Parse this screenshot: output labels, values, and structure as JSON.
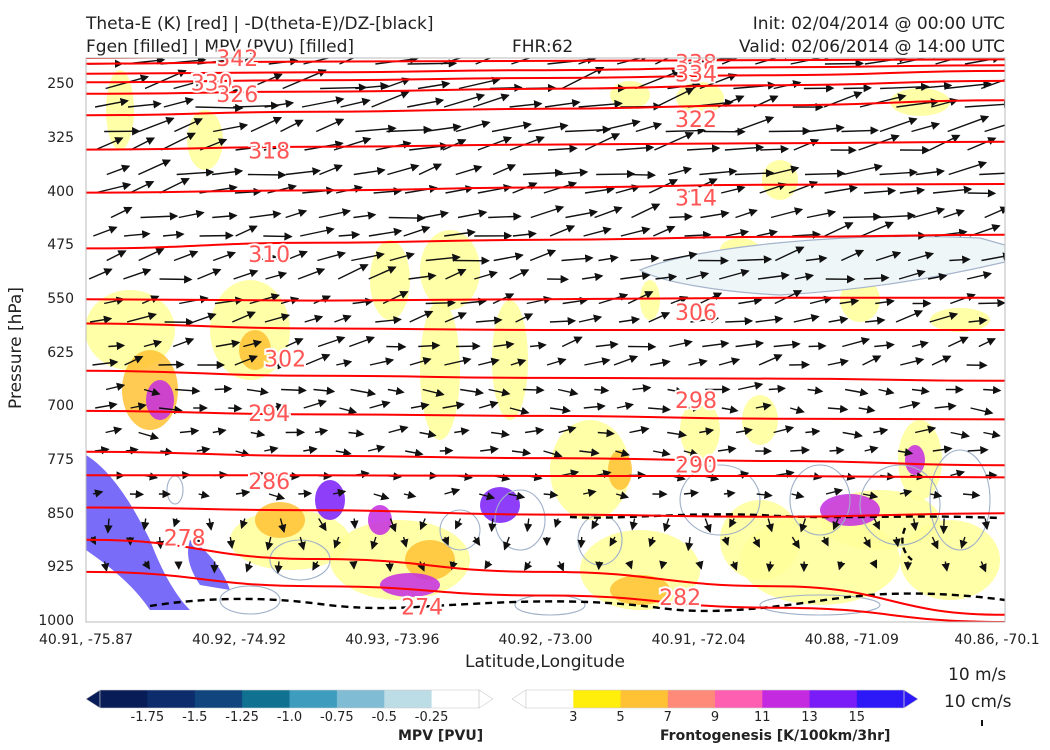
{
  "header": {
    "title_line1": "Theta-E (K) [red] | -D(theta-E)/DZ-[black]",
    "title_line2": "Fgen [filled] | MPV (PVU) [filled]",
    "fhr": "FHR:62",
    "init": "Init: 02/04/2014 @ 00:00 UTC",
    "valid": "Valid: 02/06/2014 @ 14:00 UTC"
  },
  "chart_data": {
    "type": "cross-section",
    "xlabel": "Latitude,Longitude",
    "ylabel": "Pressure [hPa]",
    "x_ticks": [
      "40.91, -75.87",
      "40.92, -74.92",
      "40.93, -73.96",
      "40.92, -73.00",
      "40.91, -72.04",
      "40.88, -71.09",
      "40.86, -70.1"
    ],
    "y_ticks": [
      250,
      325,
      400,
      475,
      550,
      625,
      700,
      775,
      850,
      925,
      1000
    ],
    "ylim": [
      1000,
      200
    ],
    "y_scale": "linear (inverted)",
    "grid": false,
    "theta_e_color": "#ff0000",
    "theta_e_contours": [
      {
        "level": 342,
        "p": [
          212,
          210,
          210,
          209,
          208
        ]
      },
      {
        "level": 338,
        "p": [
          220,
          217,
          216,
          215,
          214
        ]
      },
      {
        "level": 334,
        "p": [
          234,
          232,
          229,
          225,
          222
        ]
      },
      {
        "level": 330,
        "p": [
          246,
          243,
          240,
          236,
          230
        ]
      },
      {
        "level": 326,
        "p": [
          262,
          259,
          255,
          250,
          244
        ]
      },
      {
        "level": 322,
        "p": [
          292,
          287,
          283,
          278,
          271
        ]
      },
      {
        "level": 318,
        "p": [
          340,
          336,
          333,
          331,
          329
        ]
      },
      {
        "level": 314,
        "p": [
          400,
          397,
          393,
          389,
          388
        ]
      },
      {
        "level": 310,
        "p": [
          478,
          470,
          466,
          462,
          459
        ]
      },
      {
        "level": 306,
        "p": [
          549,
          551,
          549,
          547,
          547
        ]
      },
      {
        "level": 302,
        "p": [
          583,
          590,
          592,
          592,
          592
        ]
      },
      {
        "level": 298,
        "p": [
          649,
          656,
          659,
          660,
          663
        ]
      },
      {
        "level": 294,
        "p": [
          705,
          710,
          712,
          716,
          717
        ]
      },
      {
        "level": 290,
        "p": [
          762,
          768,
          771,
          775,
          781
        ]
      },
      {
        "level": 286,
        "p": [
          795,
          795,
          796,
          796,
          798
        ]
      },
      {
        "level": 282,
        "p": [
          840,
          844,
          850,
          853,
          848
        ]
      },
      {
        "level": 278,
        "p": [
          885,
          912,
          930,
          950,
          990
        ]
      },
      {
        "level": 274,
        "p": [
          930,
          950,
          963,
          980,
          1000
        ]
      }
    ],
    "theta_e_labels": [
      {
        "text": "342",
        "lon": -74.92,
        "p": 212
      },
      {
        "text": "338",
        "lon": -72.04,
        "p": 218
      },
      {
        "text": "334",
        "lon": -72.04,
        "p": 234
      },
      {
        "text": "330",
        "lon": -75.08,
        "p": 246
      },
      {
        "text": "326",
        "lon": -74.92,
        "p": 262
      },
      {
        "text": "322",
        "lon": -72.04,
        "p": 297
      },
      {
        "text": "318",
        "lon": -74.72,
        "p": 341
      },
      {
        "text": "314",
        "lon": -72.04,
        "p": 407
      },
      {
        "text": "310",
        "lon": -74.72,
        "p": 486
      },
      {
        "text": "306",
        "lon": -72.04,
        "p": 567
      },
      {
        "text": "302",
        "lon": -74.62,
        "p": 632
      },
      {
        "text": "298",
        "lon": -72.04,
        "p": 690
      },
      {
        "text": "294",
        "lon": -74.72,
        "p": 708
      },
      {
        "text": "290",
        "lon": -72.04,
        "p": 780
      },
      {
        "text": "286",
        "lon": -74.72,
        "p": 803
      },
      {
        "text": "282",
        "lon": -72.14,
        "p": 965
      },
      {
        "text": "278",
        "lon": -75.25,
        "p": 882
      },
      {
        "text": "274",
        "lon": -73.76,
        "p": 978
      }
    ],
    "wind_scale": {
      "label_m": "10 m/s",
      "label_cm": "10 cm/s"
    },
    "mpv_colorbar": {
      "title": "MPV [PVU]",
      "ticks": [
        "-1.75",
        "-1.5",
        "-1.25",
        "-1.0",
        "-0.75",
        "-0.5",
        "-0.25"
      ],
      "colors": [
        "#081d58",
        "#0c2c6b",
        "#10457d",
        "#117191",
        "#3e9dbf",
        "#80bcd4",
        "#bcdce6",
        "#ffffff"
      ]
    },
    "fgen_colorbar": {
      "title": "Frontogenesis [K/100km/3hr]",
      "ticks": [
        "3",
        "5",
        "7",
        "9",
        "11",
        "13",
        "15"
      ],
      "colors": [
        "#ffffff",
        "#ffef0a",
        "#ffc234",
        "#ff8a7a",
        "#ff5fb0",
        "#c42be0",
        "#7a1cf8",
        "#2d18f8"
      ]
    }
  }
}
